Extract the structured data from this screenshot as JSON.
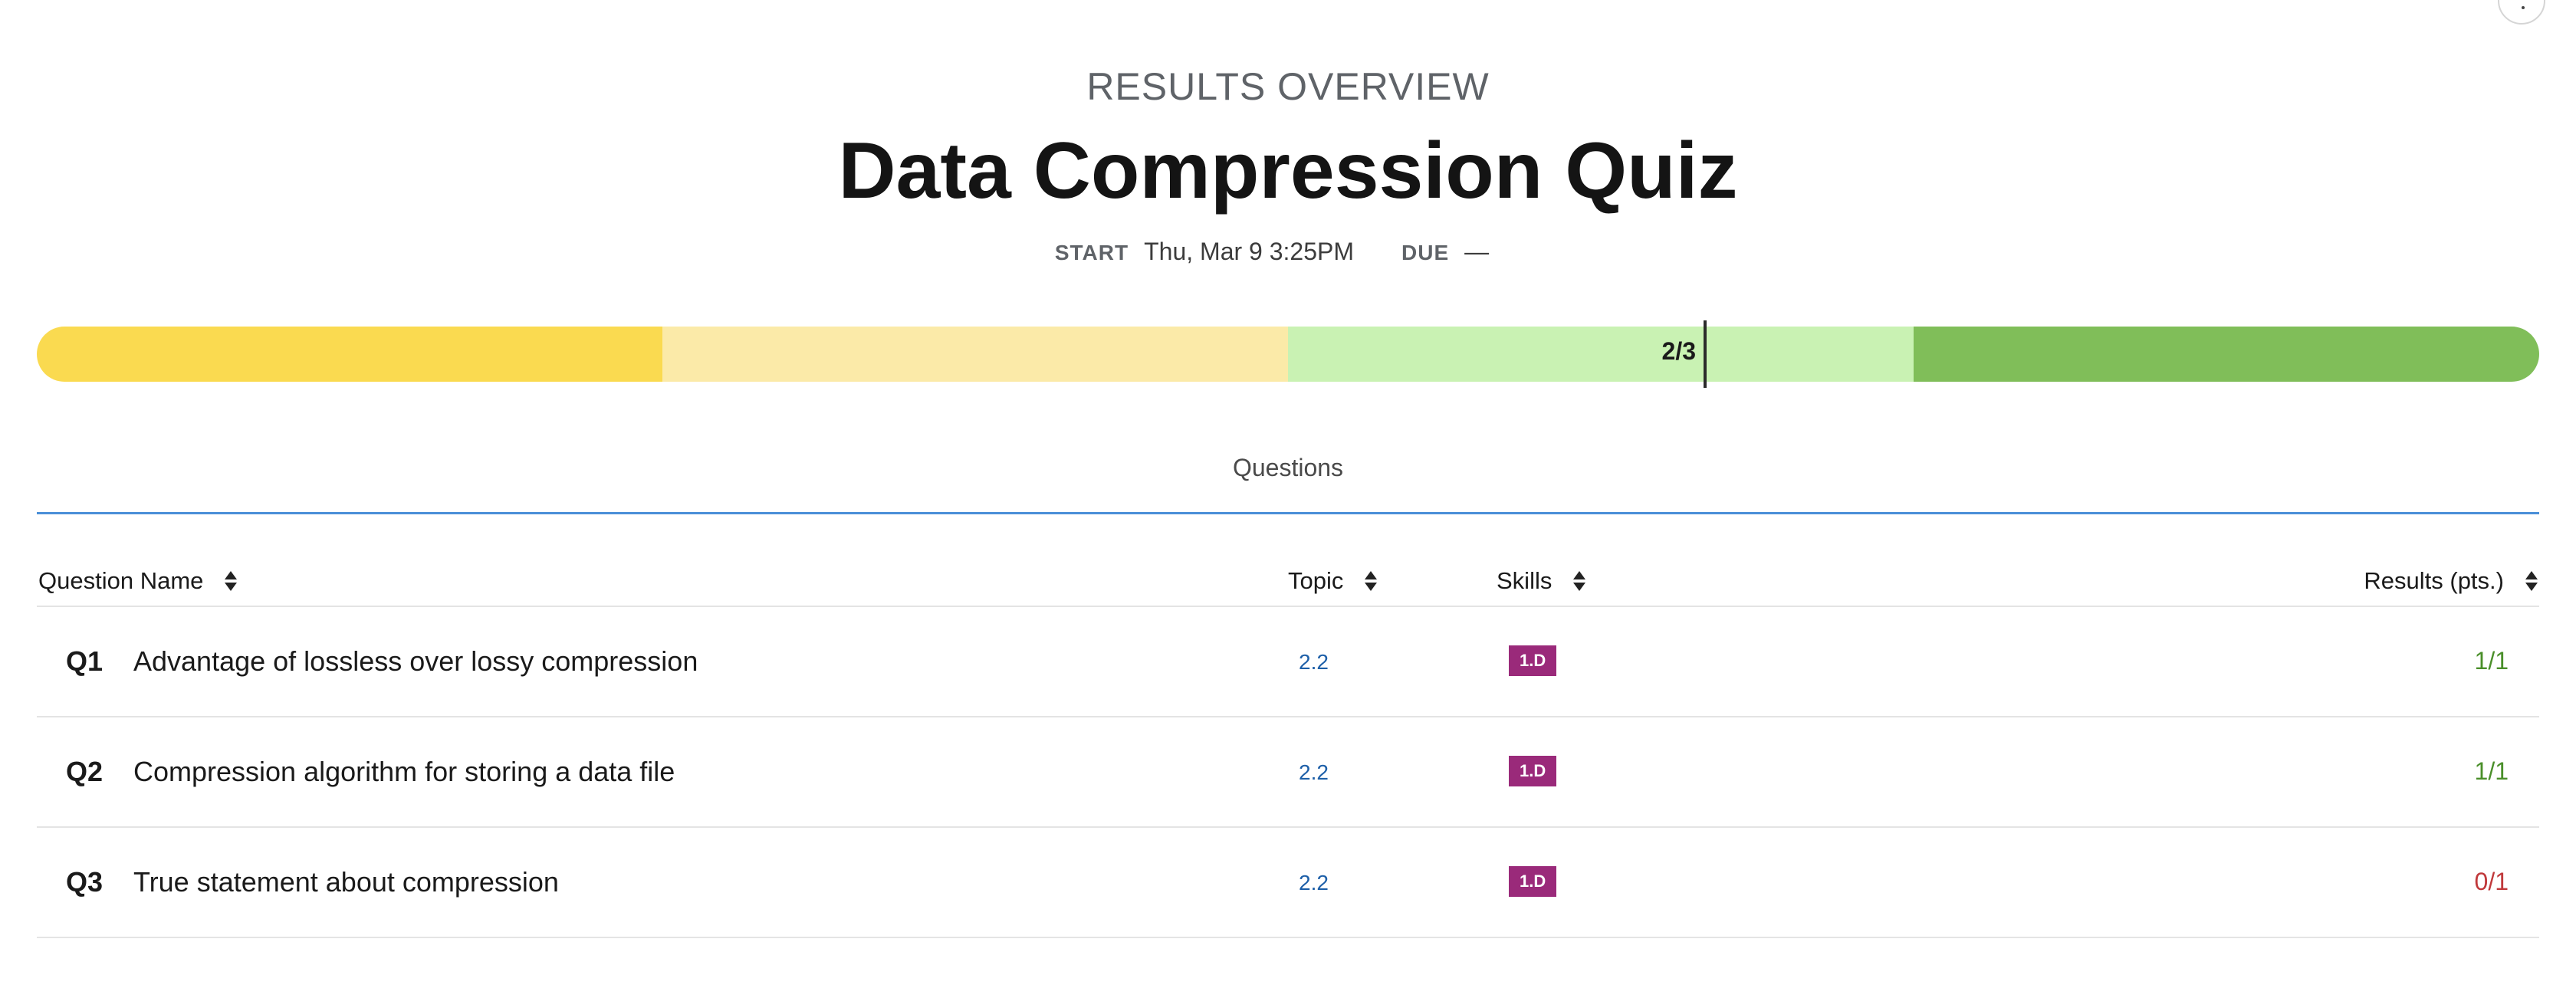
{
  "header": {
    "overline": "RESULTS OVERVIEW",
    "title": "Data Compression Quiz",
    "start_label": "START",
    "start_value": "Thu, Mar 9 3:25PM",
    "due_label": "DUE",
    "due_value": "—"
  },
  "progress": {
    "score_label": "2/3",
    "score_fraction": 0.6667,
    "segments": [
      {
        "name": "segment-1",
        "color": "#fada50",
        "fraction": 0.25
      },
      {
        "name": "segment-2",
        "color": "#fbeaa8",
        "fraction": 0.25
      },
      {
        "name": "segment-3",
        "color": "#c9f2b3",
        "fraction": 0.25
      },
      {
        "name": "segment-4",
        "color": "#80be59",
        "fraction": 0.25
      }
    ]
  },
  "tabs": {
    "active_label": "Questions",
    "underline_color": "#4a8fd8"
  },
  "table": {
    "columns": {
      "name": "Question Name",
      "topic": "Topic",
      "skills": "Skills",
      "results": "Results (pts.)"
    },
    "rows": [
      {
        "num": "Q1",
        "name": "Advantage of lossless over lossy compression",
        "topic": "2.2",
        "skill": "1.D",
        "result": "1/1",
        "result_color": "#4a8f2a"
      },
      {
        "num": "Q2",
        "name": "Compression algorithm for storing a data file",
        "topic": "2.2",
        "skill": "1.D",
        "result": "1/1",
        "result_color": "#4a8f2a"
      },
      {
        "num": "Q3",
        "name": "True statement about compression",
        "topic": "2.2",
        "skill": "1.D",
        "result": "0/1",
        "result_color": "#c0393b"
      }
    ]
  },
  "colors": {
    "skill_badge": "#9a2a7a",
    "topic_link": "#1d5fa8"
  }
}
